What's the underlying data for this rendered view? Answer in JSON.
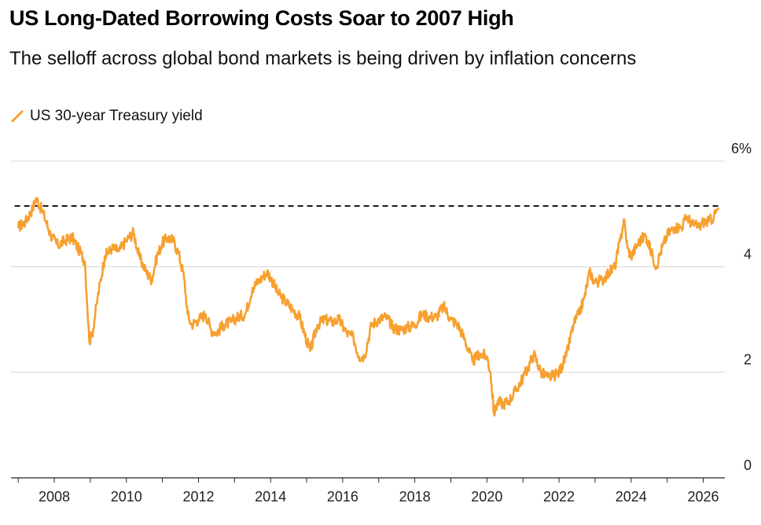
{
  "header": {
    "title": "US Long-Dated Borrowing Costs Soar to 2007 High",
    "subtitle": "The selloff across global bond markets is being driven by inflation concerns"
  },
  "chart_data": {
    "type": "line",
    "title": "US Long-Dated Borrowing Costs Soar to 2007 High",
    "subtitle": "The selloff across global bond markets is being driven by inflation concerns",
    "xlabel": "",
    "ylabel": "",
    "x_range": [
      2006.8,
      2026.6
    ],
    "ylim": [
      0,
      6
    ],
    "y_ticks": [
      {
        "value": 6,
        "label": "6%"
      },
      {
        "value": 4,
        "label": "4"
      },
      {
        "value": 2,
        "label": "2"
      },
      {
        "value": 0,
        "label": "0"
      }
    ],
    "x_ticks": [
      {
        "value": 2008,
        "label": "2008"
      },
      {
        "value": 2010,
        "label": "2010"
      },
      {
        "value": 2012,
        "label": "2012"
      },
      {
        "value": 2014,
        "label": "2014"
      },
      {
        "value": 2016,
        "label": "2016"
      },
      {
        "value": 2018,
        "label": "2018"
      },
      {
        "value": 2020,
        "label": "2020"
      },
      {
        "value": 2022,
        "label": "2022"
      },
      {
        "value": 2024,
        "label": "2024"
      },
      {
        "value": 2026,
        "label": "2026"
      }
    ],
    "grid": true,
    "legend_position": "top-left",
    "reference_line": {
      "y": 5.15,
      "style": "dashed",
      "color": "#111111"
    },
    "series": [
      {
        "name": "US 30-year Treasury yield",
        "color": "#F7A030",
        "x": [
          2007.0,
          2007.2,
          2007.4,
          2007.5,
          2007.7,
          2007.9,
          2008.1,
          2008.3,
          2008.5,
          2008.7,
          2008.85,
          2008.97,
          2009.05,
          2009.2,
          2009.4,
          2009.6,
          2009.8,
          2010.0,
          2010.2,
          2010.35,
          2010.55,
          2010.7,
          2010.85,
          2011.0,
          2011.15,
          2011.3,
          2011.45,
          2011.6,
          2011.7,
          2011.8,
          2012.0,
          2012.2,
          2012.35,
          2012.5,
          2012.7,
          2012.9,
          2013.1,
          2013.3,
          2013.5,
          2013.7,
          2013.9,
          2014.0,
          2014.2,
          2014.4,
          2014.6,
          2014.8,
          2015.0,
          2015.1,
          2015.3,
          2015.5,
          2015.7,
          2015.9,
          2016.1,
          2016.3,
          2016.45,
          2016.6,
          2016.8,
          2017.0,
          2017.2,
          2017.4,
          2017.6,
          2017.8,
          2018.0,
          2018.2,
          2018.4,
          2018.6,
          2018.8,
          2019.0,
          2019.2,
          2019.4,
          2019.6,
          2019.8,
          2020.0,
          2020.1,
          2020.2,
          2020.3,
          2020.45,
          2020.6,
          2020.8,
          2021.0,
          2021.15,
          2021.3,
          2021.5,
          2021.7,
          2021.9,
          2022.0,
          2022.2,
          2022.4,
          2022.55,
          2022.7,
          2022.85,
          2023.0,
          2023.2,
          2023.4,
          2023.55,
          2023.7,
          2023.8,
          2023.9,
          2024.0,
          2024.2,
          2024.4,
          2024.6,
          2024.7,
          2024.8,
          2025.0,
          2025.2,
          2025.4,
          2025.55,
          2025.7,
          2025.9,
          2026.0,
          2026.15,
          2026.3,
          2026.42
        ],
        "values": [
          4.75,
          4.85,
          5.1,
          5.3,
          5.0,
          4.6,
          4.4,
          4.5,
          4.55,
          4.3,
          4.1,
          2.6,
          2.7,
          3.4,
          4.2,
          4.35,
          4.3,
          4.5,
          4.65,
          4.2,
          3.9,
          3.75,
          4.2,
          4.45,
          4.55,
          4.5,
          4.25,
          3.8,
          3.1,
          2.9,
          3.0,
          3.1,
          2.8,
          2.75,
          2.9,
          2.95,
          3.05,
          3.1,
          3.6,
          3.75,
          3.9,
          3.8,
          3.5,
          3.35,
          3.2,
          3.05,
          2.6,
          2.4,
          2.9,
          3.0,
          2.95,
          3.0,
          2.75,
          2.65,
          2.3,
          2.3,
          2.9,
          3.0,
          3.05,
          2.85,
          2.8,
          2.85,
          2.9,
          3.1,
          3.05,
          3.05,
          3.25,
          3.0,
          2.9,
          2.6,
          2.2,
          2.35,
          2.3,
          2.0,
          1.2,
          1.45,
          1.4,
          1.45,
          1.65,
          1.9,
          2.1,
          2.35,
          2.0,
          1.9,
          1.95,
          2.0,
          2.3,
          2.9,
          3.1,
          3.4,
          3.9,
          3.7,
          3.75,
          3.9,
          4.0,
          4.5,
          4.9,
          4.35,
          4.2,
          4.45,
          4.6,
          4.2,
          4.0,
          4.25,
          4.6,
          4.75,
          4.75,
          4.95,
          4.8,
          4.75,
          4.85,
          4.85,
          4.95,
          5.1
        ]
      }
    ]
  }
}
